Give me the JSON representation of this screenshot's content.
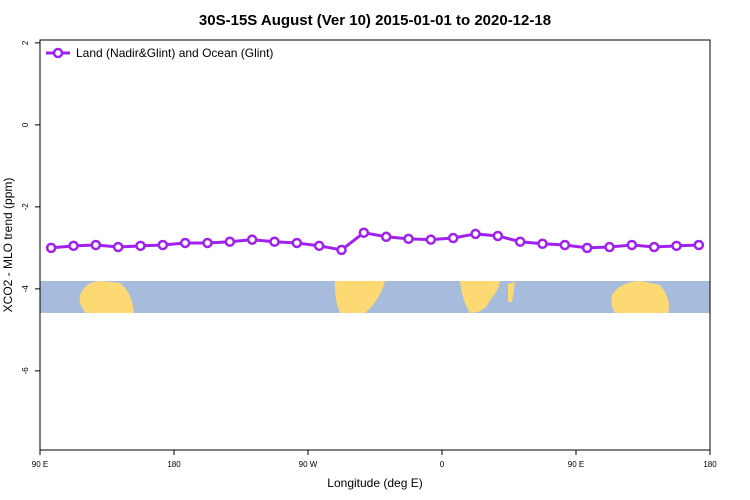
{
  "chart_data": {
    "type": "line",
    "title": "30S-15S August (Ver 10)   2015-01-01 to 2020-12-18",
    "x_label": "Longitude (deg E)",
    "y_label": "XCO2 - MLO trend (ppm)",
    "x": [
      97.5,
      112.5,
      127.5,
      142.5,
      157.5,
      172.5,
      187.5,
      202.5,
      217.5,
      232.5,
      247.5,
      262.5,
      277.5,
      292.5,
      307.5,
      322.5,
      337.5,
      352.5,
      367.5,
      382.5,
      397.5,
      412.5,
      427.5,
      442.5,
      457.5,
      472.5,
      487.5,
      502.5,
      517.5,
      532.5
    ],
    "series": [
      {
        "name": "Land (Nadir&Glint) and Ocean (Glint)",
        "color": "#a020f0",
        "values": [
          -3.0,
          -2.95,
          -2.93,
          -2.98,
          -2.95,
          -2.93,
          -2.88,
          -2.88,
          -2.85,
          -2.8,
          -2.85,
          -2.88,
          -2.95,
          -3.05,
          -2.63,
          -2.73,
          -2.78,
          -2.8,
          -2.76,
          -2.66,
          -2.71,
          -2.85,
          -2.9,
          -2.93,
          -3.0,
          -2.98,
          -2.93,
          -2.98,
          -2.95,
          -2.93
        ]
      }
    ],
    "xlim": [
      90,
      540
    ],
    "xticks": [
      {
        "value": 90,
        "label": "90 E"
      },
      180,
      {
        "value": 270,
        "label": "90 W"
      },
      {
        "value": 360,
        "label": "0"
      },
      {
        "value": 450,
        "label": "90 E"
      },
      {
        "value": 540,
        "label": "180"
      }
    ],
    "ylim": [
      -7.93,
      2.07
    ],
    "yticks": [
      2,
      0,
      -2,
      -4,
      -6
    ],
    "legend": "top-left"
  }
}
